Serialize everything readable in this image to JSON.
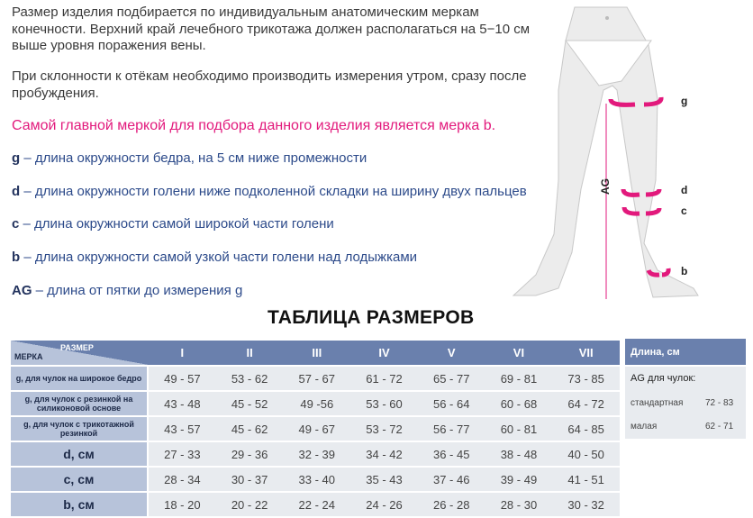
{
  "intro": {
    "p1": "Размер изделия подбирается по индивидуальным анатомическим меркам конечности. Верхний край лечебного трикотажа должен располагаться на 5−10 см выше уровня поражения вены.",
    "p2": "При склонности к отёкам необходимо производить измерения утром, сразу после пробуждения.",
    "highlight": "Самой главной меркой для подбора данного изделия является мерка b."
  },
  "measures": [
    {
      "key": "g",
      "text": " – длина окружности бедра, на 5 см ниже промежности"
    },
    {
      "key": "d",
      "text": " – длина окружности голени ниже подколенной складки на ширину двух пальцев"
    },
    {
      "key": "c",
      "text": " – длина окружности самой широкой части голени"
    },
    {
      "key": "b",
      "text": " – длина окружности самой узкой части голени над лодыжками"
    },
    {
      "key": "AG",
      "text": " – длина от пятки до измерения g"
    }
  ],
  "figure": {
    "labels": [
      "g",
      "d",
      "c",
      "b"
    ],
    "ag_label": "AG",
    "accent": "#e2197c"
  },
  "table_title": "ТАБЛИЦА РАЗМЕРОВ",
  "size_table": {
    "corner_size": "РАЗМЕР",
    "corner_measure": "МЕРКА",
    "sizes": [
      "I",
      "II",
      "III",
      "IV",
      "V",
      "VI",
      "VII"
    ],
    "rows": [
      {
        "label": "g, для чулок на широкое бедро",
        "values": [
          "49 - 57",
          "53 - 62",
          "57 - 67",
          "61 - 72",
          "65 - 77",
          "69 - 81",
          "73 - 85"
        ]
      },
      {
        "label": "g, для чулок с  резинкой на силиконовой основе",
        "values": [
          "43 - 48",
          "45 - 52",
          "49 -56",
          "53 - 60",
          "56 - 64",
          "60 - 68",
          "64 - 72"
        ]
      },
      {
        "label": "g, для чулок с трикотажной резинкой",
        "values": [
          "43 - 57",
          "45 - 62",
          "49 - 67",
          "53 - 72",
          "56 - 77",
          "60 - 81",
          "64 - 85"
        ]
      },
      {
        "label": "d, см",
        "values": [
          "27 - 33",
          "29 - 36",
          "32 - 39",
          "34 - 42",
          "36 - 45",
          "38 - 48",
          "40 - 50"
        ]
      },
      {
        "label": "c, см",
        "values": [
          "28 - 34",
          "30 - 37",
          "33 - 40",
          "35 - 43",
          "37 - 46",
          "39 - 49",
          "41 - 51"
        ]
      },
      {
        "label": "b, см",
        "values": [
          "18 - 20",
          "20 - 22",
          "22 - 24",
          "24 - 26",
          "26 - 28",
          "28 - 30",
          "30 - 32"
        ]
      }
    ],
    "header_color": "#6a80ad",
    "label_color": "#b7c3da"
  },
  "length_table": {
    "header": "Длина, см",
    "subtitle": "AG для чулок:",
    "rows": [
      {
        "label": "стандартная",
        "value": "72 - 83"
      },
      {
        "label": "малая",
        "value": "62 - 71"
      }
    ]
  }
}
